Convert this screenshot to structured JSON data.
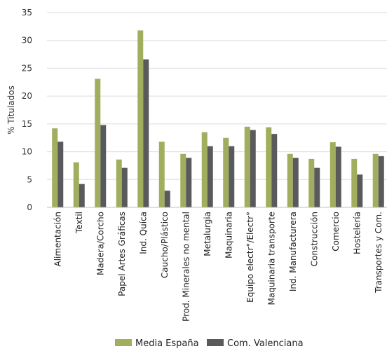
{
  "chart_data": {
    "type": "bar",
    "ylabel": "% Titulados",
    "ylim": [
      0,
      35
    ],
    "yticks": [
      0,
      5,
      10,
      15,
      20,
      25,
      30,
      35
    ],
    "grid": true,
    "legend_position": "bottom",
    "categories": [
      "Alimentación",
      "Textil",
      "Madera/Corcho",
      "Papel Artes Gráficas",
      "Ind. Quíca",
      "Caucho/Plástico",
      "Prod. Minerales no mental",
      "Metalurgia",
      "Maquinaria",
      "Equipo electr°/Electr°",
      "Maquinaria transporte",
      "Ind. Manufacturera",
      "Construcción",
      "Comercio",
      "Hostelería",
      "Transportes y Com."
    ],
    "series": [
      {
        "name": "Media España",
        "color": "#a2ad5e",
        "values": [
          14.2,
          8.1,
          23.1,
          8.6,
          31.8,
          11.8,
          9.6,
          13.5,
          12.5,
          14.5,
          14.4,
          9.6,
          8.7,
          11.7,
          8.7,
          9.6
        ]
      },
      {
        "name": "Com. Valenciana",
        "color": "#595a5c",
        "values": [
          11.8,
          4.2,
          14.8,
          7.1,
          26.6,
          3.0,
          8.9,
          11.0,
          11.0,
          13.9,
          13.2,
          8.9,
          7.1,
          10.9,
          5.9,
          9.2
        ]
      }
    ]
  }
}
